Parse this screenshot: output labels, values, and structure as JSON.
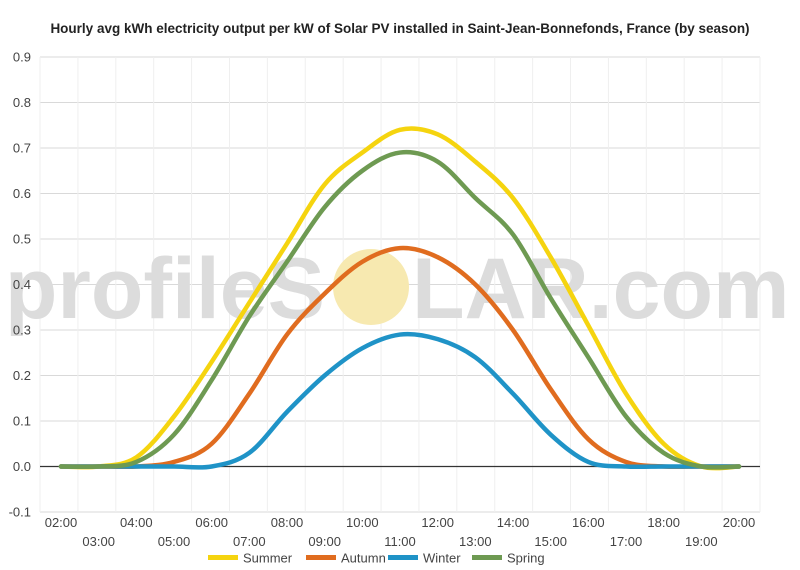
{
  "watermark": {
    "text_left": "profileS",
    "text_right": "LAR.com",
    "sun_color": "#f7e9b0"
  },
  "chart_data": {
    "type": "line",
    "title": "Hourly avg kWh electricity output per kW of Solar PV installed in Saint-Jean-Bonnefonds, France (by season)",
    "xlabel": "",
    "ylabel": "",
    "ylim": [
      -0.1,
      0.9
    ],
    "yticks": [
      "-0.1",
      "0.0",
      "0.1",
      "0.2",
      "0.3",
      "0.4",
      "0.5",
      "0.6",
      "0.7",
      "0.8",
      "0.9"
    ],
    "grid": true,
    "legend_position": "bottom",
    "categories": [
      "02:00",
      "03:00",
      "04:00",
      "05:00",
      "06:00",
      "07:00",
      "08:00",
      "09:00",
      "10:00",
      "11:00",
      "12:00",
      "13:00",
      "14:00",
      "15:00",
      "16:00",
      "17:00",
      "18:00",
      "19:00",
      "20:00"
    ],
    "series": [
      {
        "name": "Summer",
        "color": "#f5d40f",
        "values": [
          0.0,
          0.0,
          0.02,
          0.11,
          0.23,
          0.36,
          0.49,
          0.62,
          0.69,
          0.74,
          0.73,
          0.67,
          0.59,
          0.46,
          0.31,
          0.16,
          0.05,
          0.0,
          0.0
        ]
      },
      {
        "name": "Autumn",
        "color": "#e06c1f",
        "values": [
          0.0,
          0.0,
          0.0,
          0.01,
          0.05,
          0.16,
          0.29,
          0.38,
          0.45,
          0.48,
          0.46,
          0.4,
          0.3,
          0.17,
          0.06,
          0.01,
          0.0,
          0.0,
          0.0
        ]
      },
      {
        "name": "Winter",
        "color": "#1f93c7",
        "values": [
          0.0,
          0.0,
          0.0,
          0.0,
          0.0,
          0.03,
          0.12,
          0.2,
          0.26,
          0.29,
          0.28,
          0.24,
          0.16,
          0.07,
          0.01,
          0.0,
          0.0,
          0.0,
          0.0
        ]
      },
      {
        "name": "Spring",
        "color": "#6e9a52",
        "values": [
          0.0,
          0.0,
          0.01,
          0.07,
          0.19,
          0.33,
          0.45,
          0.57,
          0.65,
          0.69,
          0.67,
          0.59,
          0.51,
          0.37,
          0.24,
          0.11,
          0.03,
          0.0,
          0.0
        ]
      }
    ]
  }
}
